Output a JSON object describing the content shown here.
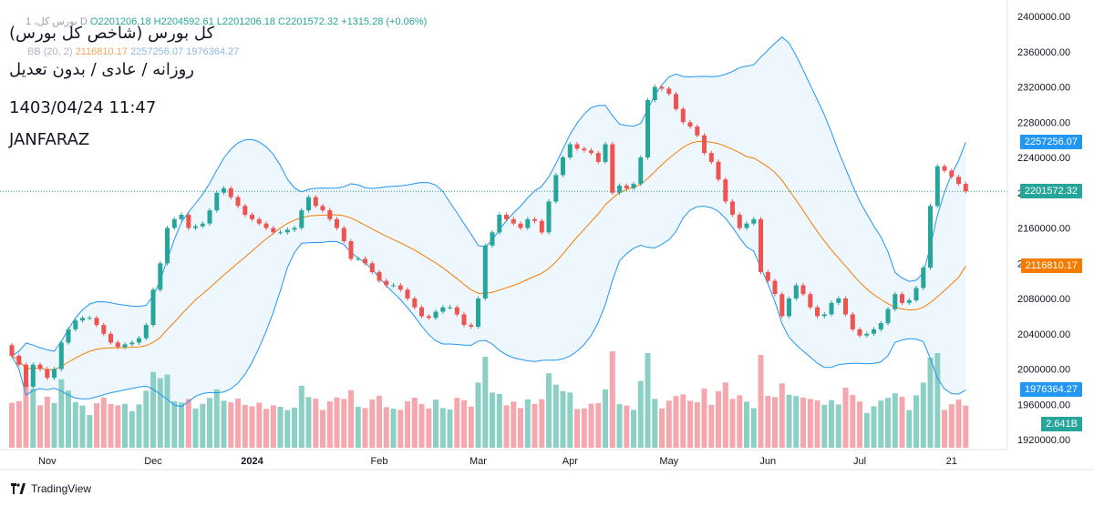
{
  "header": {
    "ohlc_prefix": "1 ،بورس‌ کل D",
    "ohlc_values": "O2201206.18 H2204592.61 L2201206.18 C2201572.32 +1315.28 (+0.06%)",
    "bb_label": "BB (20, 2)",
    "bb_mid": "2116810.17",
    "bb_upper": "2257256.07",
    "bb_lower": "1976364.27"
  },
  "overlay": {
    "title": "(کل بورس (شاخص کل بورس",
    "subtitle": "روزانه / عادی / بدون تعدیل",
    "datetime": "1403/04/24 11:47",
    "watermark": "JANFARAZ"
  },
  "footer": {
    "brand": "TradingView"
  },
  "colors": {
    "up": "#26a69a",
    "down": "#ef5350",
    "volume_up": "#8ccfc4",
    "volume_down": "#f4a7ad",
    "bb_band": "#2196f3",
    "bb_basis": "#f57c00",
    "bb_fill": "#e3f2fd",
    "last_price": "#26a69a"
  },
  "price_labels": {
    "upper": "2257256.07",
    "last": "2201572.32",
    "basis": "2116810.17",
    "lower": "1976364.27",
    "volume": "2.641B"
  },
  "chart_data": {
    "type": "candlestick",
    "y_ticks": [
      1920000,
      1960000,
      2000000,
      2040000,
      2080000,
      2120000,
      2160000,
      2200000,
      2240000,
      2280000,
      2320000,
      2360000,
      2400000
    ],
    "y_tick_labels": [
      "1920000.00",
      "1960000.00",
      "2000000.00",
      "2040000.00",
      "2080000.00",
      "2120000.00",
      "2160000.00",
      "2200000.00",
      "2240000.00",
      "2280000.00",
      "2320000.00",
      "2360000.00",
      "2400000.00"
    ],
    "x_labels": [
      "Nov",
      "Dec",
      "2024",
      "Feb",
      "Mar",
      "Apr",
      "May",
      "Jun",
      "Jul",
      "21"
    ],
    "x_label_bar_index": [
      5,
      20,
      34,
      52,
      66,
      79,
      93,
      107,
      120,
      133
    ],
    "last_price": 2201572.32,
    "close": [
      2015000,
      2005000,
      1980000,
      2005000,
      2000000,
      1990000,
      2000000,
      2030000,
      2045000,
      2055000,
      2058000,
      2058000,
      2050000,
      2040000,
      2030000,
      2025000,
      2028000,
      2030000,
      2035000,
      2050000,
      2090000,
      2120000,
      2160000,
      2170000,
      2175000,
      2160000,
      2162000,
      2165000,
      2180000,
      2200000,
      2205000,
      2195000,
      2185000,
      2175000,
      2170000,
      2165000,
      2160000,
      2155000,
      2155000,
      2158000,
      2160000,
      2180000,
      2195000,
      2185000,
      2180000,
      2170000,
      2160000,
      2145000,
      2125000,
      2125000,
      2120000,
      2110000,
      2100000,
      2095000,
      2095000,
      2090000,
      2080000,
      2070000,
      2060000,
      2058000,
      2065000,
      2070000,
      2070000,
      2062000,
      2050000,
      2048000,
      2080000,
      2140000,
      2155000,
      2175000,
      2170000,
      2165000,
      2160000,
      2170000,
      2168000,
      2155000,
      2190000,
      2220000,
      2240000,
      2255000,
      2250000,
      2248000,
      2245000,
      2235000,
      2255000,
      2200000,
      2208000,
      2205000,
      2210000,
      2240000,
      2305000,
      2320000,
      2318000,
      2312000,
      2295000,
      2280000,
      2275000,
      2265000,
      2245000,
      2235000,
      2215000,
      2190000,
      2175000,
      2160000,
      2165000,
      2170000,
      2110000,
      2100000,
      2085000,
      2060000,
      2080000,
      2095000,
      2085000,
      2070000,
      2060000,
      2062000,
      2075000,
      2080000,
      2062000,
      2045000,
      2038000,
      2040000,
      2045000,
      2052000,
      2068000,
      2085000,
      2075000,
      2078000,
      2092000,
      2115000,
      2185000,
      2230000,
      2225000,
      2218000,
      2210000,
      2201572
    ]
  }
}
